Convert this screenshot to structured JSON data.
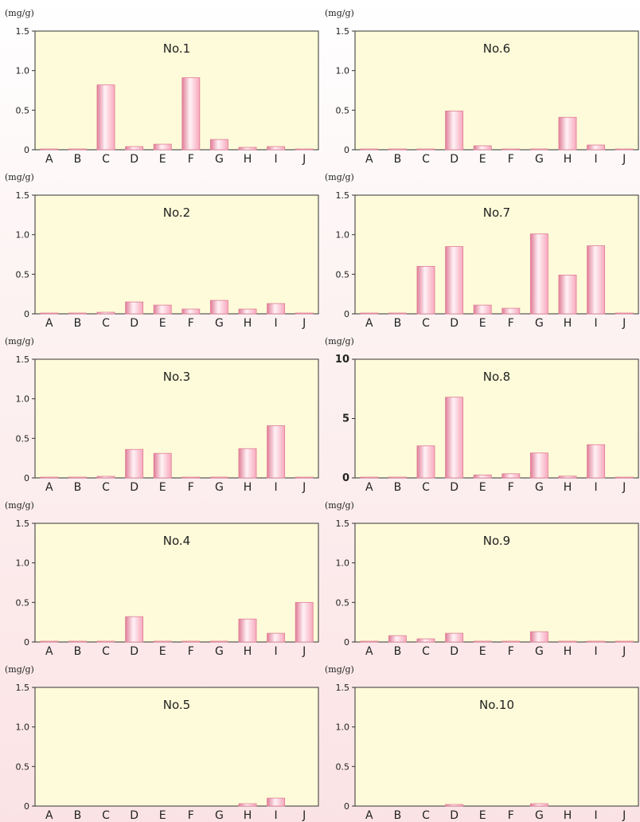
{
  "colors": {
    "plot_bg": "#fdfbd9",
    "bar_edge": "#e07d97",
    "bar_center": "#fff2f6",
    "bar_side": "#f7a8bc",
    "axis": "#333333"
  },
  "chart_data": [
    {
      "type": "bar",
      "title": "No.1",
      "unit": "(mg/g)",
      "ylim": [
        0,
        1.5
      ],
      "yticks": [
        "0",
        "0.5",
        "1.0",
        "1.5"
      ],
      "ytick_values": [
        0,
        0.5,
        1.0,
        1.5
      ],
      "categories": [
        "A",
        "B",
        "C",
        "D",
        "E",
        "F",
        "G",
        "H",
        "I",
        "J"
      ],
      "values": [
        0.005,
        0.005,
        0.82,
        0.04,
        0.07,
        0.91,
        0.13,
        0.03,
        0.04,
        0.003
      ]
    },
    {
      "type": "bar",
      "title": "No.6",
      "unit": "(mg/g)",
      "ylim": [
        0,
        1.5
      ],
      "yticks": [
        "0",
        "0.5",
        "1.0",
        "1.5"
      ],
      "ytick_values": [
        0,
        0.5,
        1.0,
        1.5
      ],
      "categories": [
        "A",
        "B",
        "C",
        "D",
        "E",
        "F",
        "G",
        "H",
        "I",
        "J"
      ],
      "values": [
        0.003,
        0.005,
        0.003,
        0.49,
        0.05,
        0.003,
        0.003,
        0.41,
        0.06,
        0.005
      ]
    },
    {
      "type": "bar",
      "title": "No.2",
      "unit": "(mg/g)",
      "ylim": [
        0,
        1.5
      ],
      "yticks": [
        "0",
        "0.5",
        "1.0",
        "1.5"
      ],
      "ytick_values": [
        0,
        0.5,
        1.0,
        1.5
      ],
      "categories": [
        "A",
        "B",
        "C",
        "D",
        "E",
        "F",
        "G",
        "H",
        "I",
        "J"
      ],
      "values": [
        0.005,
        0.005,
        0.02,
        0.15,
        0.11,
        0.06,
        0.17,
        0.06,
        0.13,
        0.003
      ]
    },
    {
      "type": "bar",
      "title": "No.7",
      "unit": "(mg/g)",
      "ylim": [
        0,
        1.5
      ],
      "yticks": [
        "0",
        "0.5",
        "1.0",
        "1.5"
      ],
      "ytick_values": [
        0,
        0.5,
        1.0,
        1.5
      ],
      "categories": [
        "A",
        "B",
        "C",
        "D",
        "E",
        "F",
        "G",
        "H",
        "I",
        "J"
      ],
      "values": [
        0.003,
        0.005,
        0.6,
        0.85,
        0.11,
        0.07,
        1.01,
        0.49,
        0.86,
        0.005
      ]
    },
    {
      "type": "bar",
      "title": "No.3",
      "unit": "(mg/g)",
      "ylim": [
        0,
        1.5
      ],
      "yticks": [
        "0",
        "0.5",
        "1.0",
        "1.5"
      ],
      "ytick_values": [
        0,
        0.5,
        1.0,
        1.5
      ],
      "categories": [
        "A",
        "B",
        "C",
        "D",
        "E",
        "F",
        "G",
        "H",
        "I",
        "J"
      ],
      "values": [
        0.003,
        0.003,
        0.02,
        0.36,
        0.31,
        0.003,
        0.003,
        0.37,
        0.66,
        0.003
      ]
    },
    {
      "type": "bar",
      "title": "No.8",
      "unit": "(mg/g)",
      "ylim": [
        0,
        10
      ],
      "yticks": [
        "0",
        "5",
        "10"
      ],
      "ytick_values": [
        0,
        5,
        10
      ],
      "ytick_bold": true,
      "categories": [
        "A",
        "B",
        "C",
        "D",
        "E",
        "F",
        "G",
        "H",
        "I",
        "J"
      ],
      "values": [
        0.05,
        0.05,
        2.7,
        6.8,
        0.25,
        0.35,
        2.1,
        0.15,
        2.8,
        0.05
      ]
    },
    {
      "type": "bar",
      "title": "No.4",
      "unit": "(mg/g)",
      "ylim": [
        0,
        1.5
      ],
      "yticks": [
        "0",
        "0.5",
        "1.0",
        "1.5"
      ],
      "ytick_values": [
        0,
        0.5,
        1.0,
        1.5
      ],
      "categories": [
        "A",
        "B",
        "C",
        "D",
        "E",
        "F",
        "G",
        "H",
        "I",
        "J"
      ],
      "values": [
        0.005,
        0.005,
        0.005,
        0.32,
        0.005,
        0.003,
        0.005,
        0.29,
        0.11,
        0.5
      ]
    },
    {
      "type": "bar",
      "title": "No.9",
      "unit": "(mg/g)",
      "ylim": [
        0,
        1.5
      ],
      "yticks": [
        "0",
        "0.5",
        "1.0",
        "1.5"
      ],
      "ytick_values": [
        0,
        0.5,
        1.0,
        1.5
      ],
      "categories": [
        "A",
        "B",
        "C",
        "D",
        "E",
        "F",
        "G",
        "H",
        "I",
        "J"
      ],
      "values": [
        0.003,
        0.08,
        0.04,
        0.11,
        0.005,
        0.003,
        0.13,
        0.003,
        0.005,
        0.005
      ]
    },
    {
      "type": "bar",
      "title": "No.5",
      "unit": "(mg/g)",
      "ylim": [
        0,
        1.5
      ],
      "yticks": [
        "0",
        "0.5",
        "1.0",
        "1.5"
      ],
      "ytick_values": [
        0,
        0.5,
        1.0,
        1.5
      ],
      "categories": [
        "A",
        "B",
        "C",
        "D",
        "E",
        "F",
        "G",
        "H",
        "I",
        "J"
      ],
      "values": [
        0,
        0,
        0,
        0,
        0,
        0,
        0,
        0.03,
        0.1,
        0
      ]
    },
    {
      "type": "bar",
      "title": "No.10",
      "unit": "(mg/g)",
      "ylim": [
        0,
        1.5
      ],
      "yticks": [
        "0",
        "0.5",
        "1.0",
        "1.5"
      ],
      "ytick_values": [
        0,
        0.5,
        1.0,
        1.5
      ],
      "categories": [
        "A",
        "B",
        "C",
        "D",
        "E",
        "F",
        "G",
        "H",
        "I",
        "J"
      ],
      "values": [
        0,
        0,
        0,
        0.02,
        0,
        0,
        0.03,
        0,
        0,
        0
      ]
    }
  ]
}
